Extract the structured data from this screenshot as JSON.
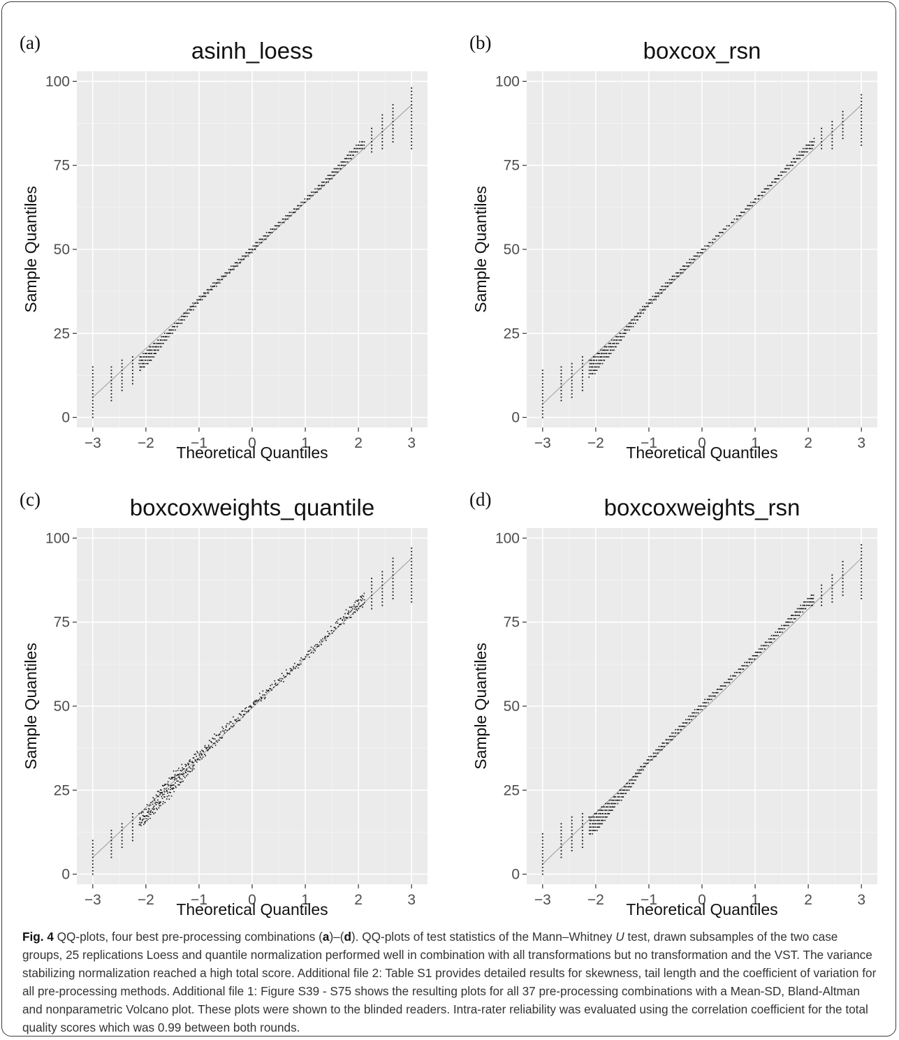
{
  "caption": {
    "label": "Fig. 4",
    "parts": [
      {
        "t": " QQ-plots, four best pre-processing combinations ("
      },
      {
        "t": "a",
        "b": true
      },
      {
        "t": ")–("
      },
      {
        "t": "d",
        "b": true
      },
      {
        "t": "). QQ-plots of test statistics of the Mann–Whitney "
      },
      {
        "t": "U",
        "i": true
      },
      {
        "t": " test, drawn subsamples of the two case groups, 25 replications Loess and quantile normalization performed well in combination with all transformations but no transformation and the VST. The variance stabilizing normalization reached a high total score. Additional file 2: Table S1 provides detailed results for skewness, tail length and the coefficient of variation for all pre-processing methods. Additional file 1: Figure S39 - S75 shows the resulting plots for all 37 pre-processing combinations with a Mean-SD, Bland-Altman and nonparametric Volcano plot. These plots were shown to the blinded readers. Intra-rater reliability was evaluated using the correlation coefficient for the total quality scores which was 0.99 between both rounds."
      }
    ]
  },
  "chart_data": [
    {
      "type": "scatter",
      "panel": "(a)",
      "title": "asinh_loess",
      "xlabel": "Theoretical Quantiles",
      "ylabel": "Sample Quantiles",
      "xlim": [
        -3.3,
        3.3
      ],
      "ylim": [
        -3,
        103
      ],
      "xticks": [
        -3,
        -2,
        -1,
        0,
        1,
        2,
        3
      ],
      "yticks": [
        0,
        25,
        50,
        75,
        100
      ],
      "reference_line": {
        "x": [
          -3,
          3
        ],
        "y": [
          6,
          93
        ]
      },
      "grid": true,
      "series": [
        {
          "x": [
            -3,
            -2.65,
            -2.45,
            -2.25,
            -2,
            -1.5,
            -1,
            -0.5,
            0,
            0.5,
            1,
            1.5,
            2,
            2.25,
            2.45,
            2.65,
            3
          ],
          "lo": [
            0,
            5,
            8,
            10,
            13,
            24,
            33,
            41,
            48,
            56,
            63,
            70,
            78,
            79,
            80,
            82,
            80
          ],
          "hi": [
            15,
            15,
            17,
            18,
            22,
            28,
            37,
            44,
            52,
            59,
            66,
            74,
            83,
            86,
            90,
            93,
            98
          ]
        }
      ]
    },
    {
      "type": "scatter",
      "panel": "(b)",
      "title": "boxcox_rsn",
      "xlabel": "Theoretical Quantiles",
      "ylabel": "Sample Quantiles",
      "xlim": [
        -3.3,
        3.3
      ],
      "ylim": [
        -3,
        103
      ],
      "xticks": [
        -3,
        -2,
        -1,
        0,
        1,
        2,
        3
      ],
      "yticks": [
        0,
        25,
        50,
        75,
        100
      ],
      "reference_line": {
        "x": [
          -3,
          3
        ],
        "y": [
          4,
          93
        ]
      },
      "grid": true,
      "series": [
        {
          "x": [
            -3,
            -2.65,
            -2.45,
            -2.25,
            -2,
            -1.5,
            -1,
            -0.5,
            0,
            0.5,
            1,
            1.5,
            2,
            2.25,
            2.45,
            2.65,
            3
          ],
          "lo": [
            0,
            5,
            6,
            8,
            11,
            22,
            32,
            40,
            48,
            56,
            63,
            71,
            78,
            80,
            80,
            83,
            81
          ],
          "hi": [
            14,
            15,
            16,
            18,
            21,
            27,
            36,
            44,
            51,
            58,
            66,
            74,
            83,
            86,
            88,
            91,
            96
          ]
        }
      ]
    },
    {
      "type": "scatter",
      "panel": "(c)",
      "title": "boxcoxweights_quantile",
      "xlabel": "Theoretical Quantiles",
      "ylabel": "Sample Quantiles",
      "xlim": [
        -3.3,
        3.3
      ],
      "ylim": [
        -3,
        103
      ],
      "xticks": [
        -3,
        -2,
        -1,
        0,
        1,
        2,
        3
      ],
      "yticks": [
        0,
        25,
        50,
        75,
        100
      ],
      "reference_line": {
        "x": [
          -3,
          3
        ],
        "y": [
          5,
          94
        ]
      },
      "grid": true,
      "series": [
        {
          "x": [
            -3,
            -2.65,
            -2.45,
            -2.25,
            -2,
            -1.5,
            -1,
            -0.5,
            0,
            0.5,
            1,
            1.5,
            2,
            2.25,
            2.45,
            2.65,
            3
          ],
          "lo": [
            0,
            5,
            8,
            10,
            13,
            22,
            32,
            41,
            48,
            56,
            63,
            71,
            77,
            79,
            80,
            82,
            81
          ],
          "hi": [
            10,
            13,
            15,
            18,
            22,
            32,
            38,
            45,
            52,
            59,
            66,
            74,
            84,
            88,
            90,
            94,
            97
          ]
        }
      ]
    },
    {
      "type": "scatter",
      "panel": "(d)",
      "title": "boxcoxweights_rsn",
      "xlabel": "Theoretical Quantiles",
      "ylabel": "Sample Quantiles",
      "xlim": [
        -3.3,
        3.3
      ],
      "ylim": [
        -3,
        103
      ],
      "xticks": [
        -3,
        -2,
        -1,
        0,
        1,
        2,
        3
      ],
      "yticks": [
        0,
        25,
        50,
        75,
        100
      ],
      "reference_line": {
        "x": [
          -3,
          3
        ],
        "y": [
          3,
          94
        ]
      },
      "grid": true,
      "series": [
        {
          "x": [
            -3,
            -2.65,
            -2.45,
            -2.25,
            -2,
            -1.5,
            -1,
            -0.5,
            0,
            0.5,
            1,
            1.5,
            2,
            2.25,
            2.45,
            2.65,
            3
          ],
          "lo": [
            0,
            5,
            7,
            8,
            10,
            21,
            32,
            40,
            48,
            56,
            63,
            71,
            78,
            80,
            81,
            83,
            82
          ],
          "hi": [
            12,
            15,
            17,
            18,
            21,
            27,
            36,
            44,
            52,
            59,
            67,
            75,
            84,
            86,
            89,
            93,
            98
          ]
        }
      ]
    }
  ]
}
